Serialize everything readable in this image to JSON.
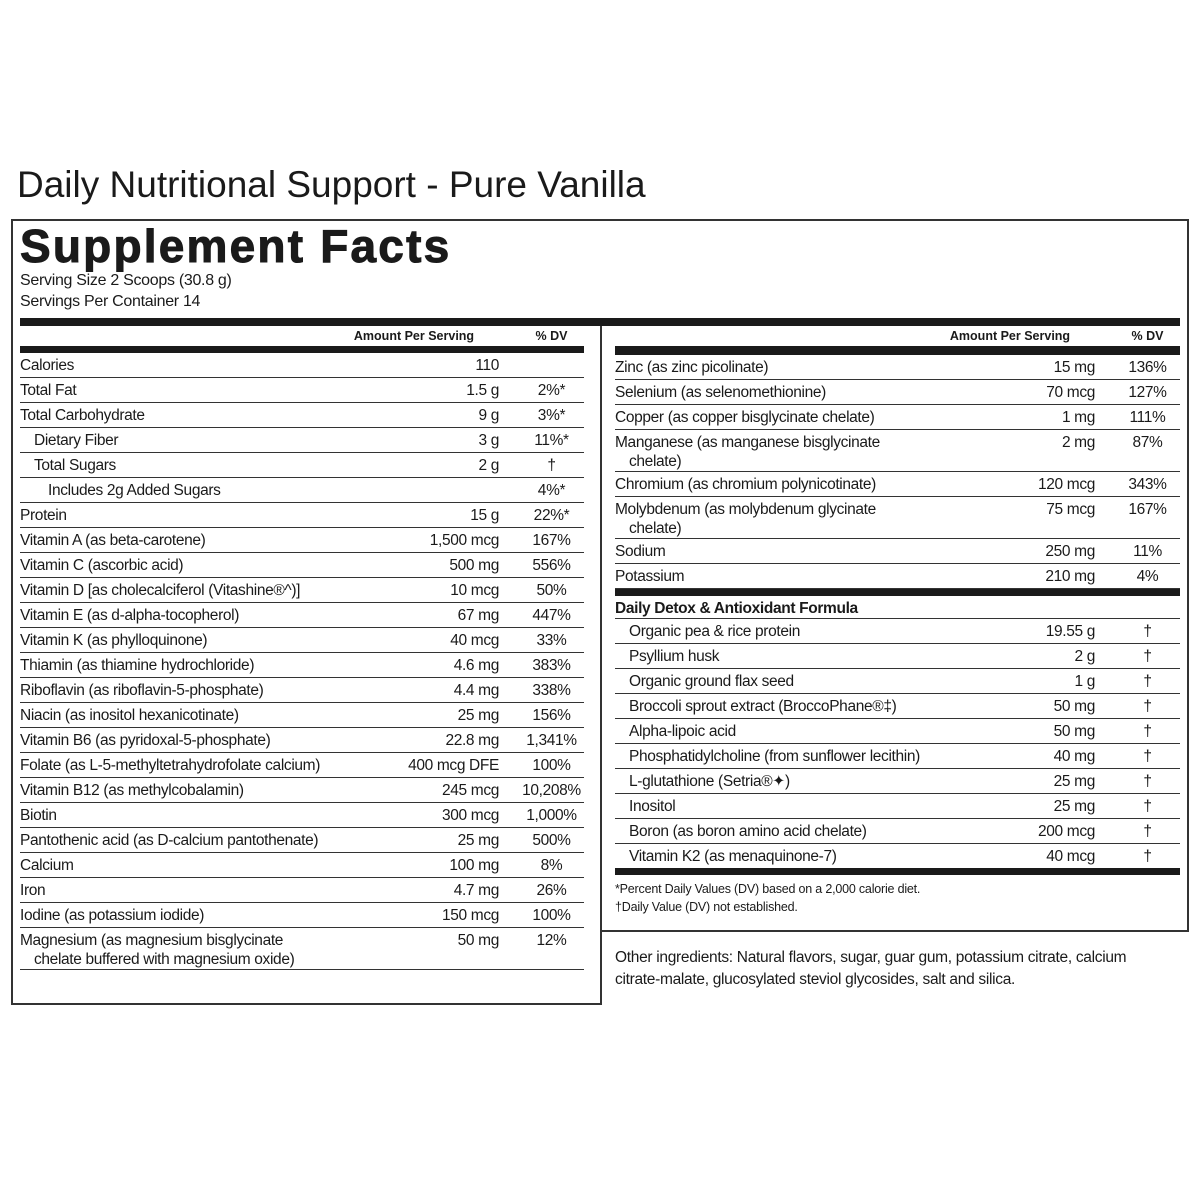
{
  "title": "Daily Nutritional Support - Pure Vanilla",
  "facts": {
    "heading": "Supplement Facts",
    "serving_size": "Serving Size 2 Scoops (30.8 g)",
    "servings_per_container": "Servings Per Container 14",
    "left": {
      "header": {
        "amount": "Amount Per Serving",
        "dv": "% DV"
      },
      "rows": [
        {
          "name": "Calories",
          "amount": "110"
        },
        {
          "name": "Total Fat",
          "amount": "1.5 g",
          "dv": "2%*"
        },
        {
          "name": "Total Carbohydrate",
          "amount": "9 g",
          "dv": "3%*",
          "sub_rows": [
            {
              "name": "Dietary Fiber",
              "amount": "3 g",
              "dv": "11%*"
            },
            {
              "name": "Total Sugars",
              "amount": "2 g",
              "dv": "†",
              "sub_rows": [
                {
                  "name": "Includes 2g Added Sugars",
                  "dv": "4%*"
                }
              ]
            }
          ]
        },
        {
          "name": "Protein",
          "amount": "15 g",
          "dv": "22%*"
        },
        {
          "name": "Vitamin A (as beta-carotene)",
          "amount": "1,500 mcg",
          "dv": "167%"
        },
        {
          "name": "Vitamin C (ascorbic acid)",
          "amount": "500 mg",
          "dv": "556%"
        },
        {
          "name": "Vitamin D [as cholecalciferol (Vitashine®^)]",
          "amount": "10 mcg",
          "dv": "50%"
        },
        {
          "name": "Vitamin E (as d-alpha-tocopherol)",
          "amount": "67 mg",
          "dv": "447%"
        },
        {
          "name": "Vitamin K (as phylloquinone)",
          "amount": "40 mcg",
          "dv": "33%"
        },
        {
          "name": "Thiamin (as thiamine hydrochloride)",
          "amount": "4.6 mg",
          "dv": "383%"
        },
        {
          "name": "Riboflavin (as riboflavin-5-phosphate)",
          "amount": "4.4 mg",
          "dv": "338%"
        },
        {
          "name": "Niacin (as inositol hexanicotinate)",
          "amount": "25 mg",
          "dv": "156%"
        },
        {
          "name": "Vitamin B6 (as pyridoxal-5-phosphate)",
          "amount": "22.8 mg",
          "dv": "1,341%"
        },
        {
          "name": "Folate (as L-5-methyltetrahydrofolate calcium)",
          "amount": "400 mcg DFE",
          "dv": "100%"
        },
        {
          "name": "Vitamin B12 (as methylcobalamin)",
          "amount": "245 mcg",
          "dv": "10,208%"
        },
        {
          "name": "Biotin",
          "amount": "300 mcg",
          "dv": "1,000%"
        },
        {
          "name": "Pantothenic acid (as D-calcium pantothenate)",
          "amount": "25 mg",
          "dv": "500%"
        },
        {
          "name": "Calcium",
          "amount": "100 mg",
          "dv": "8%"
        },
        {
          "name": "Iron",
          "amount": "4.7 mg",
          "dv": "26%"
        },
        {
          "name": "Iodine (as potassium iodide)",
          "amount": "150 mcg",
          "dv": "100%"
        },
        {
          "name": "Magnesium (as magnesium bisglycinate chelate buffered with magnesium oxide)",
          "amount": "50 mg",
          "dv": "12%"
        }
      ]
    },
    "right": {
      "header": {
        "amount": "Amount Per Serving",
        "dv": "% DV"
      },
      "rows": [
        {
          "name": "Zinc (as zinc picolinate)",
          "amount": "15 mg",
          "dv": "136%"
        },
        {
          "name": "Selenium (as selenomethionine)",
          "amount": "70 mcg",
          "dv": "127%"
        },
        {
          "name": "Copper (as copper bisglycinate chelate)",
          "amount": "1 mg",
          "dv": "111%"
        },
        {
          "name": "Manganese (as manganese bisglycinate chelate)",
          "amount": "2 mg",
          "dv": "87%"
        },
        {
          "name": "Chromium (as chromium polynicotinate)",
          "amount": "120 mcg",
          "dv": "343%"
        },
        {
          "name": "Molybdenum (as molybdenum glycinate chelate)",
          "amount": "75 mcg",
          "dv": "167%"
        },
        {
          "name": "Sodium",
          "amount": "250 mg",
          "dv": "11%"
        },
        {
          "name": "Potassium",
          "amount": "210 mg",
          "dv": "4%"
        }
      ],
      "blend": {
        "heading": "Daily Detox & Antioxidant Formula",
        "rows": [
          {
            "name": "Organic pea & rice protein",
            "amount": "19.55 g",
            "dv": "†"
          },
          {
            "name": "Psyllium husk",
            "amount": "2 g",
            "dv": "†"
          },
          {
            "name": "Organic ground flax seed",
            "amount": "1 g",
            "dv": "†"
          },
          {
            "name": "Broccoli sprout extract (BroccoPhane®‡)",
            "amount": "50 mg",
            "dv": "†"
          },
          {
            "name": "Alpha-lipoic acid",
            "amount": "50 mg",
            "dv": "†"
          },
          {
            "name": "Phosphatidylcholine (from sunflower lecithin)",
            "amount": "40 mg",
            "dv": "†"
          },
          {
            "name": "L-glutathione (Setria®✦)",
            "amount": "25 mg",
            "dv": "†"
          },
          {
            "name": "Inositol",
            "amount": "25 mg",
            "dv": "†"
          },
          {
            "name": "Boron (as boron amino acid chelate)",
            "amount": "200 mcg",
            "dv": "†"
          },
          {
            "name": "Vitamin K2 (as menaquinone-7)",
            "amount": "40 mcg",
            "dv": "†"
          }
        ]
      },
      "footnotes": [
        "*Percent Daily Values (DV) based on a 2,000 calorie diet.",
        "†Daily Value (DV) not established."
      ]
    },
    "other_ingredients": "Other ingredients: Natural flavors, sugar, guar gum, potassium citrate, calcium citrate-malate, glucosylated steviol glycosides, salt and silica."
  }
}
